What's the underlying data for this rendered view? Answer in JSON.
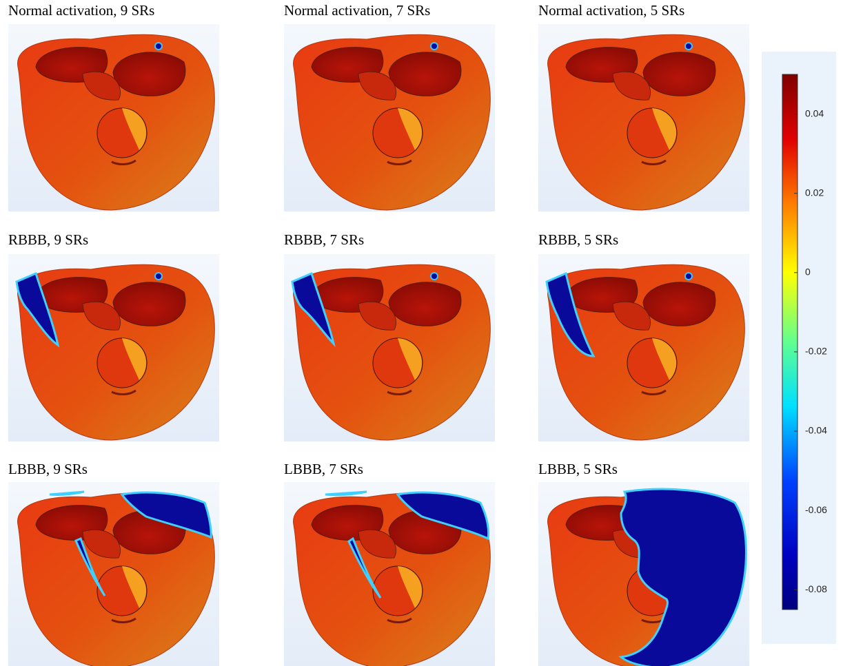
{
  "panels": [
    {
      "title": "Normal activation, 9 SRs"
    },
    {
      "title": "Normal activation, 7 SRs"
    },
    {
      "title": "Normal activation, 5 SRs"
    },
    {
      "title": "RBBB, 9 SRs"
    },
    {
      "title": "RBBB, 7 SRs"
    },
    {
      "title": "RBBB, 5 SRs"
    },
    {
      "title": "LBBB, 9 SRs"
    },
    {
      "title": "LBBB, 7 SRs"
    },
    {
      "title": "LBBB, 5 SRs"
    }
  ],
  "colorbar": {
    "type": "colorbar",
    "lim": [
      -0.085,
      0.05
    ],
    "ticks": [
      0.04,
      0.02,
      0,
      -0.02,
      -0.04,
      -0.06,
      -0.08
    ]
  }
}
